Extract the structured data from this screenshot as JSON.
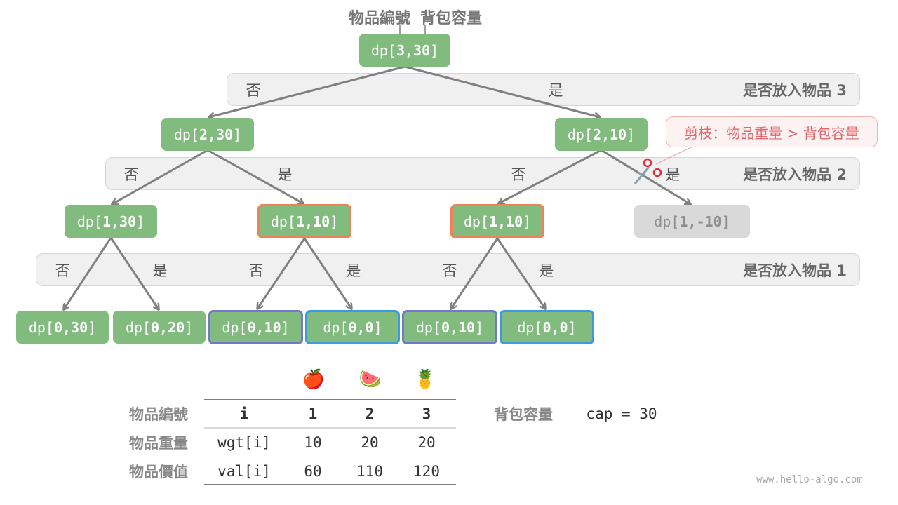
{
  "header": {
    "item_index_label": "物品編號",
    "capacity_label": "背包容量"
  },
  "bands": [
    {
      "label": "是否放入物品 3",
      "choices": [
        "否",
        "是"
      ]
    },
    {
      "label": "是否放入物品 2",
      "choices": [
        "否",
        "是",
        "否",
        "是"
      ]
    },
    {
      "label": "是否放入物品 1",
      "choices": [
        "否",
        "是",
        "否",
        "是",
        "否",
        "是"
      ]
    }
  ],
  "nodes": {
    "root": {
      "prefix": "dp[",
      "args": "3,30",
      "suffix": "]"
    },
    "l2": [
      {
        "prefix": "dp[",
        "args": "2,30",
        "suffix": "]"
      },
      {
        "prefix": "dp[",
        "args": "2,10",
        "suffix": "]"
      }
    ],
    "l1": [
      {
        "prefix": "dp[",
        "args": "1,30",
        "suffix": "]",
        "style": "normal"
      },
      {
        "prefix": "dp[",
        "args": "1,10",
        "suffix": "]",
        "style": "orange"
      },
      {
        "prefix": "dp[",
        "args": "1,10",
        "suffix": "]",
        "style": "orange"
      },
      {
        "prefix": "dp[",
        "args": "1,-10",
        "suffix": "]",
        "style": "pruned"
      }
    ],
    "l0": [
      {
        "prefix": "dp[",
        "args": "0,30",
        "suffix": "]",
        "style": "normal"
      },
      {
        "prefix": "dp[",
        "args": "0,20",
        "suffix": "]",
        "style": "normal"
      },
      {
        "prefix": "dp[",
        "args": "0,10",
        "suffix": "]",
        "style": "purple"
      },
      {
        "prefix": "dp[",
        "args": "0,0",
        "suffix": "]",
        "style": "blue"
      },
      {
        "prefix": "dp[",
        "args": "0,10",
        "suffix": "]",
        "style": "purple"
      },
      {
        "prefix": "dp[",
        "args": "0,0",
        "suffix": "]",
        "style": "blue"
      }
    ]
  },
  "callout": {
    "text": "剪枝：物品重量 > 背包容量",
    "icon": "scissors-icon"
  },
  "table": {
    "fruits": [
      "🍎",
      "🍉",
      "🍍"
    ],
    "rows": [
      {
        "label": "物品編號",
        "key": "i",
        "values": [
          "1",
          "2",
          "3"
        ]
      },
      {
        "label": "物品重量",
        "key": "wgt[i]",
        "values": [
          "10",
          "20",
          "20"
        ]
      },
      {
        "label": "物品價值",
        "key": "val[i]",
        "values": [
          "60",
          "110",
          "120"
        ]
      }
    ]
  },
  "capacity": {
    "label": "背包容量",
    "value": "cap = 30"
  },
  "watermark": "www.hello-algo.com",
  "colors": {
    "node": "#82bb7e",
    "orange": "#f0825a",
    "purple": "#7378cf",
    "blue": "#3a9be0",
    "pruned": "#d9d9d9",
    "callout": "#e2666c"
  }
}
